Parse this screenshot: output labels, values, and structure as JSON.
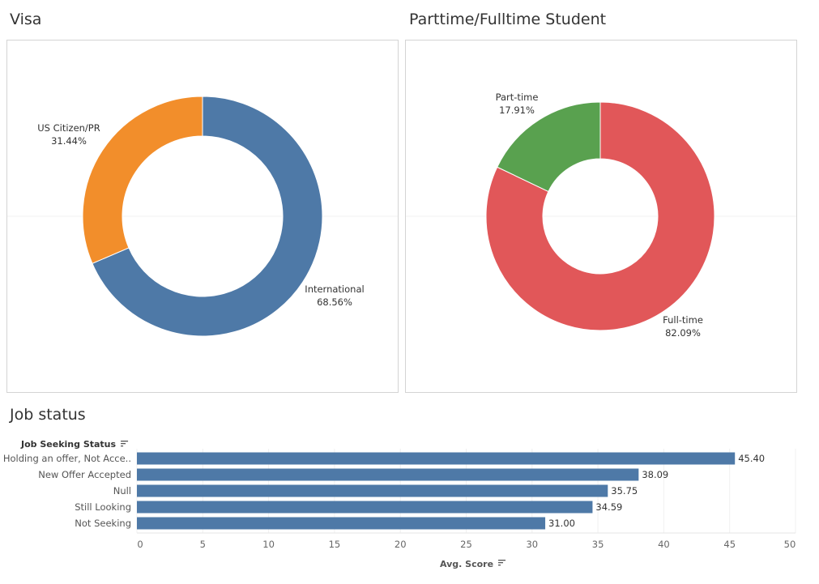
{
  "visa": {
    "title": "Visa",
    "chart_data": {
      "type": "pie",
      "title": "Visa",
      "slices": [
        {
          "label": "International",
          "pct_label": "68.56%",
          "value": 68.56,
          "color": "#4e79a7"
        },
        {
          "label": "US Citizen/PR",
          "pct_label": "31.44%",
          "value": 31.44,
          "color": "#f28e2b"
        }
      ]
    }
  },
  "student": {
    "title": "Parttime/Fulltime Student",
    "chart_data": {
      "type": "pie",
      "title": "Parttime/Fulltime Student",
      "slices": [
        {
          "label": "Full-time",
          "pct_label": "82.09%",
          "value": 82.09,
          "color": "#e15759"
        },
        {
          "label": "Part-time",
          "pct_label": "17.91%",
          "value": 17.91,
          "color": "#59a14f"
        }
      ]
    }
  },
  "job": {
    "title": "Job status",
    "chart_data": {
      "type": "bar",
      "orientation": "horizontal",
      "row_header": "Job Seeking Status",
      "xlabel": "Avg. Score",
      "xlim": [
        0,
        50
      ],
      "xticks": [
        0,
        5,
        10,
        15,
        20,
        25,
        30,
        35,
        40,
        45,
        50
      ],
      "bar_color": "#4e79a7",
      "categories": [
        "Holding an offer, Not Acce..",
        "New Offer Accepted",
        "Null",
        "Still Looking",
        "Not Seeking"
      ],
      "values": [
        45.4,
        38.09,
        35.75,
        34.59,
        31.0
      ],
      "value_labels": [
        "45.40",
        "38.09",
        "35.75",
        "34.59",
        "31.00"
      ]
    }
  }
}
